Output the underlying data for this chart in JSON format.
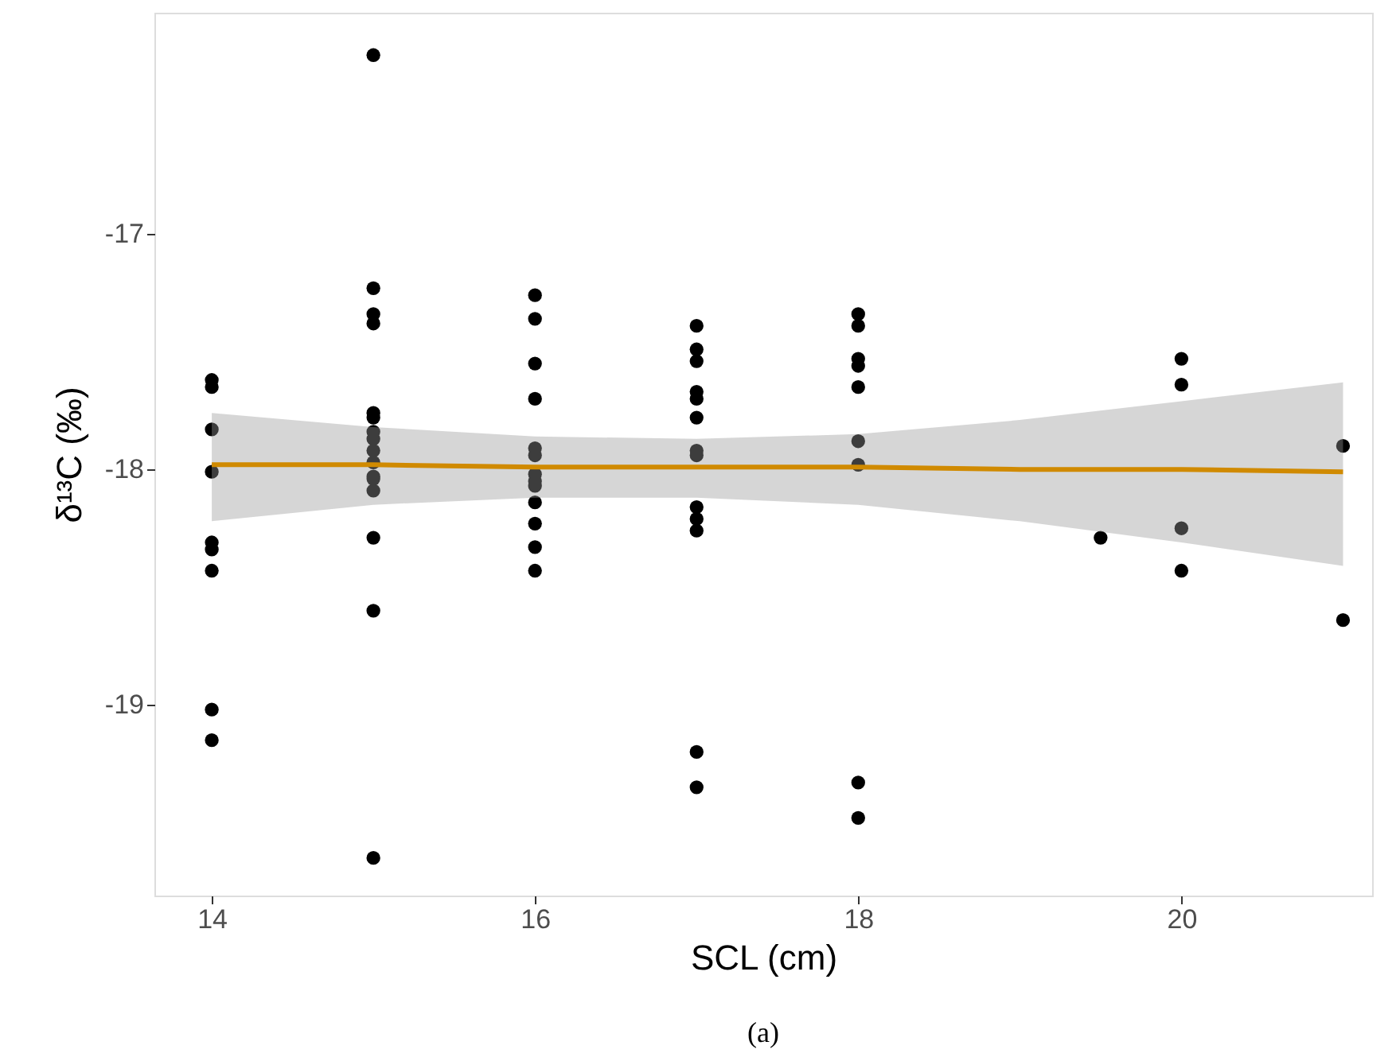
{
  "chart_data": {
    "type": "scatter",
    "xlabel": "SCL (cm)",
    "ylabel": "δ¹³C (‰)",
    "xlim": [
      13.645,
      21.18
    ],
    "ylim": [
      -19.81,
      -16.06
    ],
    "xticks": [
      14,
      16,
      18,
      20
    ],
    "yticks": [
      -17,
      -18,
      -19
    ],
    "grid": false,
    "annotations": [
      "(a)"
    ],
    "series": [
      {
        "color": "#000000",
        "marker": "circle",
        "x": [
          14,
          14,
          14,
          14,
          14,
          14,
          14,
          14,
          14,
          15,
          15,
          15,
          15,
          15,
          15,
          15,
          15,
          15,
          15,
          15,
          15,
          15,
          15,
          15,
          15,
          16,
          16,
          16,
          16,
          16,
          16,
          16,
          16,
          16,
          16,
          16,
          16,
          16,
          17,
          17,
          17,
          17,
          17,
          17,
          17,
          17,
          17,
          17,
          17,
          17,
          17,
          18,
          18,
          18,
          18,
          18,
          18,
          18,
          18,
          18,
          19.5,
          20,
          20,
          20,
          20,
          21,
          21
        ],
        "values": [
          -17.62,
          -17.65,
          -17.83,
          -18.01,
          -18.31,
          -18.34,
          -18.43,
          -19.02,
          -19.15,
          -16.24,
          -17.23,
          -17.34,
          -17.38,
          -17.76,
          -17.78,
          -17.84,
          -17.87,
          -17.92,
          -17.97,
          -18.03,
          -18.04,
          -18.09,
          -18.29,
          -18.6,
          -19.65,
          -17.26,
          -17.36,
          -17.55,
          -17.7,
          -17.91,
          -17.94,
          -18.02,
          -18.05,
          -18.07,
          -18.14,
          -18.23,
          -18.33,
          -18.43,
          -17.39,
          -17.49,
          -17.54,
          -17.67,
          -17.7,
          -17.78,
          -17.92,
          -17.94,
          -18.16,
          -18.21,
          -18.26,
          -19.2,
          -19.35,
          -17.34,
          -17.39,
          -17.53,
          -17.56,
          -17.65,
          -17.88,
          -17.98,
          -19.33,
          -19.48,
          -18.29,
          -17.53,
          -17.64,
          -18.25,
          -18.43,
          -17.9,
          -18.64
        ]
      },
      {
        "type": "line",
        "color": "#d08a00",
        "line_style": "solid",
        "x": [
          14,
          15,
          16,
          17,
          18,
          19,
          20,
          21
        ],
        "values": [
          -17.98,
          -17.98,
          -17.99,
          -17.99,
          -17.99,
          -18.0,
          -18.0,
          -18.01
        ],
        "lower": [
          -18.22,
          -18.15,
          -18.12,
          -18.12,
          -18.15,
          -18.22,
          -18.31,
          -18.41
        ],
        "upper": [
          -17.76,
          -17.82,
          -17.86,
          -17.87,
          -17.85,
          -17.79,
          -17.71,
          -17.63
        ]
      }
    ]
  }
}
